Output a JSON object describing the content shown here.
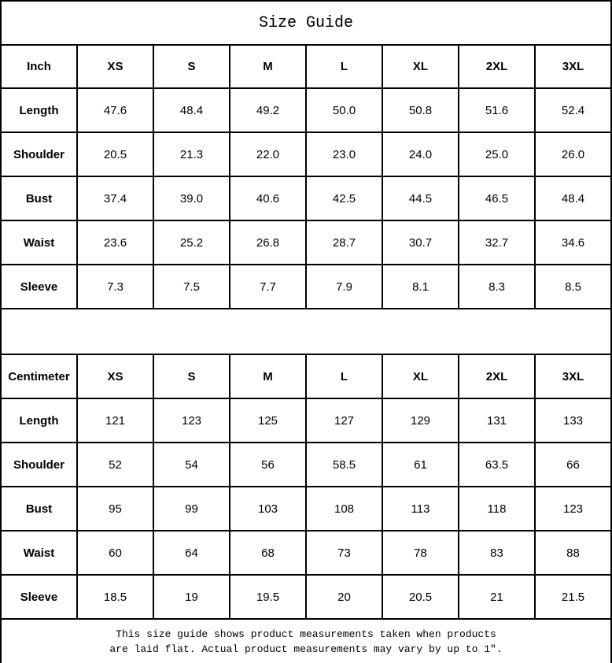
{
  "title": "Size Guide",
  "colors": {
    "border": "#000000",
    "background": "#ffffff",
    "text": "#000000"
  },
  "tables": [
    {
      "unit_label": "Inch",
      "sizes": [
        "XS",
        "S",
        "M",
        "L",
        "XL",
        "2XL",
        "3XL"
      ],
      "rows": [
        {
          "label": "Length",
          "values": [
            "47.6",
            "48.4",
            "49.2",
            "50.0",
            "50.8",
            "51.6",
            "52.4"
          ]
        },
        {
          "label": "Shoulder",
          "values": [
            "20.5",
            "21.3",
            "22.0",
            "23.0",
            "24.0",
            "25.0",
            "26.0"
          ]
        },
        {
          "label": "Bust",
          "values": [
            "37.4",
            "39.0",
            "40.6",
            "42.5",
            "44.5",
            "46.5",
            "48.4"
          ]
        },
        {
          "label": "Waist",
          "values": [
            "23.6",
            "25.2",
            "26.8",
            "28.7",
            "30.7",
            "32.7",
            "34.6"
          ]
        },
        {
          "label": "Sleeve",
          "values": [
            "7.3",
            "7.5",
            "7.7",
            "7.9",
            "8.1",
            "8.3",
            "8.5"
          ]
        }
      ]
    },
    {
      "unit_label": "Centimeter",
      "sizes": [
        "XS",
        "S",
        "M",
        "L",
        "XL",
        "2XL",
        "3XL"
      ],
      "rows": [
        {
          "label": "Length",
          "values": [
            "121",
            "123",
            "125",
            "127",
            "129",
            "131",
            "133"
          ]
        },
        {
          "label": "Shoulder",
          "values": [
            "52",
            "54",
            "56",
            "58.5",
            "61",
            "63.5",
            "66"
          ]
        },
        {
          "label": "Bust",
          "values": [
            "95",
            "99",
            "103",
            "108",
            "113",
            "118",
            "123"
          ]
        },
        {
          "label": "Waist",
          "values": [
            "60",
            "64",
            "68",
            "73",
            "78",
            "83",
            "88"
          ]
        },
        {
          "label": "Sleeve",
          "values": [
            "18.5",
            "19",
            "19.5",
            "20",
            "20.5",
            "21",
            "21.5"
          ]
        }
      ]
    }
  ],
  "footer": {
    "line1": "This size guide shows product measurements taken when products",
    "line2": "are laid flat. Actual product measurements may vary by up to 1″."
  }
}
